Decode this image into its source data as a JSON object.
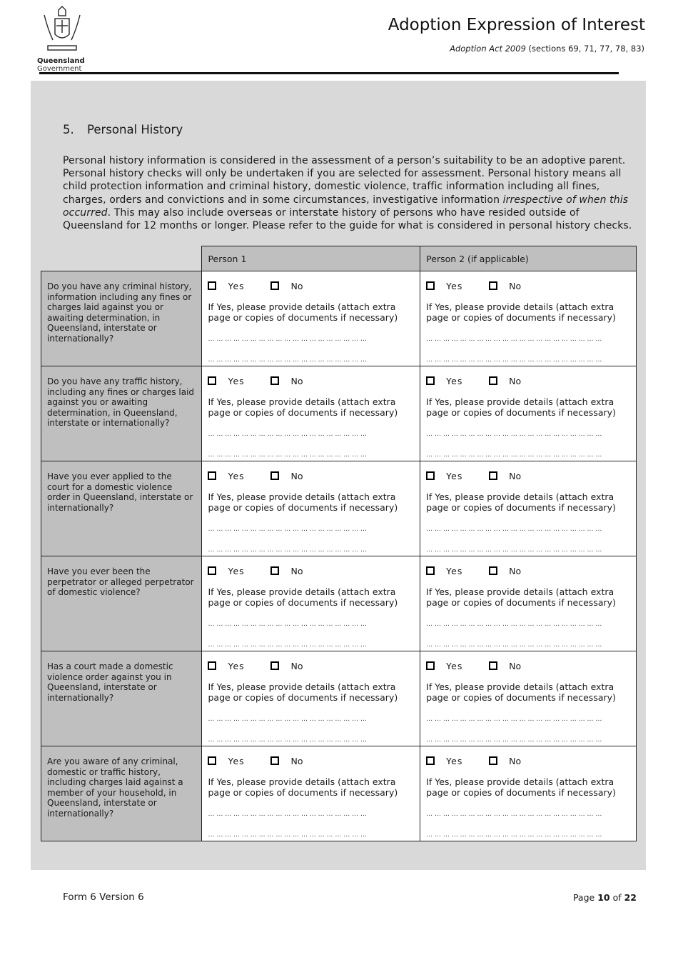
{
  "header": {
    "logo_text": "Queensland",
    "logo_subtext": "Government",
    "title": "Adoption Expression of Interest",
    "act": "Adoption Act 2009",
    "sections": " (sections 69, 71, 77, 78, 83)"
  },
  "section": {
    "number": "5.",
    "title": "Personal History",
    "intro_1": "Personal history information is considered in the assessment of a person’s suitability to be an adoptive parent. Personal history checks will only be undertaken if you are selected for assessment. Personal history means all child protection information and criminal history, domestic violence, traffic information including all fines, charges, orders and convictions and in some circumstances, investigative information ",
    "intro_italic": "irrespective of when this occurred",
    "intro_2": ". This may also include overseas or interstate history of persons who have resided outside of Queensland for 12 months or longer. Please refer to the guide for what is considered in personal history checks."
  },
  "table": {
    "headers": [
      "Person 1",
      "Person 2 (if applicable)"
    ],
    "yes": "Yes",
    "no": "No",
    "details": "If Yes, please provide details (attach extra page or copies of documents if necessary)",
    "dots_p1": "… … … … … … … … … … … … … … … … … … …",
    "dots_p2": "… … … … … … … … … … … … … … … … … … … … …",
    "questions": [
      "Do you have any criminal history, information including any fines or charges laid against you or awaiting determination, in Queensland, interstate or internationally?",
      "Do you have any traffic history, including any fines or charges laid against you or awaiting determination, in Queensland, interstate or internationally?",
      "Have you ever applied to the court for a domestic violence order in Queensland, interstate or internationally?",
      "Have you ever been the perpetrator or alleged perpetrator of domestic violence?",
      "Has a court made a domestic violence order against you in Queensland, interstate or internationally?",
      "Are you aware of any criminal, domestic or traffic history, including charges laid against a member of your household, in Queensland, interstate or internationally?"
    ]
  },
  "footer": {
    "form": "Form 6 Version 6",
    "page_label": "Page ",
    "page": "10",
    "of": " of ",
    "total": "22"
  }
}
